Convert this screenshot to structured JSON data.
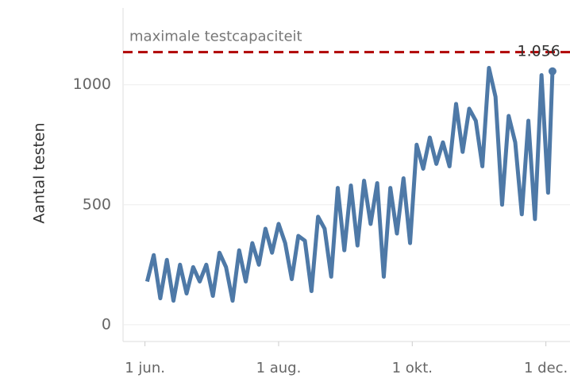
{
  "chart_data": {
    "type": "line",
    "y_label": "Aantal testen",
    "x": [
      1,
      4,
      7,
      10,
      13,
      16,
      19,
      22,
      25,
      28,
      31,
      34,
      37,
      40,
      43,
      46,
      49,
      52,
      55,
      58,
      61,
      64,
      67,
      70,
      73,
      76,
      79,
      82,
      85,
      88,
      91,
      94,
      97,
      100,
      103,
      106,
      109,
      112,
      115,
      118,
      121,
      124,
      127,
      130,
      133,
      136,
      139,
      142,
      145,
      148,
      151,
      154,
      157,
      160,
      163,
      166,
      169,
      172,
      175,
      178,
      181,
      184,
      186
    ],
    "series": [
      {
        "name": "Aantal testen",
        "color": "#4e79a7",
        "values": [
          180,
          290,
          110,
          270,
          100,
          250,
          130,
          240,
          180,
          250,
          120,
          300,
          240,
          100,
          310,
          180,
          340,
          250,
          400,
          300,
          420,
          340,
          190,
          370,
          350,
          140,
          450,
          400,
          200,
          570,
          310,
          580,
          330,
          600,
          420,
          590,
          200,
          570,
          380,
          610,
          340,
          750,
          650,
          780,
          670,
          760,
          660,
          920,
          720,
          900,
          850,
          660,
          1070,
          950,
          500,
          870,
          760,
          460,
          850,
          440,
          1040,
          550,
          1056
        ],
        "value_labels": {
          "62": "1.056"
        }
      }
    ],
    "xlim": [
      -10,
      194
    ],
    "xticks": [
      {
        "value": 0,
        "label": "1 jun."
      },
      {
        "value": 61,
        "label": "1 aug."
      },
      {
        "value": 122,
        "label": "1 okt."
      },
      {
        "value": 183,
        "label": "1 dec."
      }
    ],
    "ylim": [
      -70,
      1320
    ],
    "yticks": [
      0,
      500,
      1000
    ],
    "grid": true,
    "reference_line": {
      "value": 1136,
      "label": "maximale testcapaciteit",
      "color": "#b00000"
    }
  }
}
